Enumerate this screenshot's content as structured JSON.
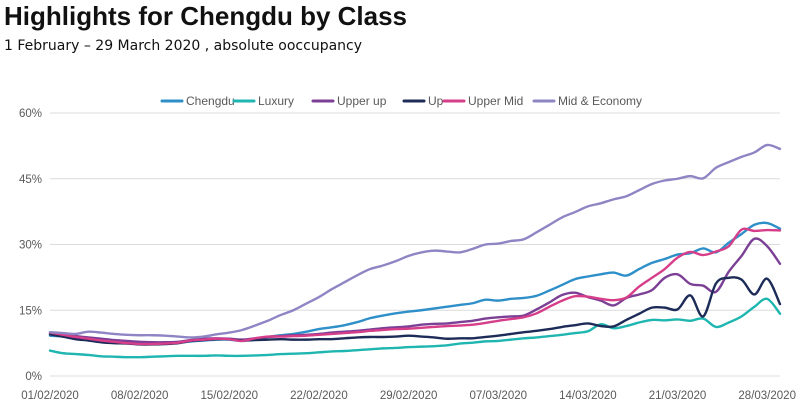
{
  "header": {
    "title": "Highlights for Chengdu by Class",
    "subtitle": "1 February – 29 March 2020 , absolute ooccupancy"
  },
  "chart_data": {
    "type": "line",
    "title": "Highlights for Chengdu by Class",
    "subtitle": "1 February – 29 March 2020 , absolute ooccupancy",
    "xlabel": "",
    "ylabel": "",
    "ylim": [
      0,
      60
    ],
    "yticks": [
      0,
      15,
      30,
      45,
      60
    ],
    "ytick_labels": [
      "0%",
      "15%",
      "30%",
      "45%",
      "60%"
    ],
    "grid": true,
    "legend_position": "top-center",
    "xtick_labels": [
      "01/02/2020",
      "08/02/2020",
      "15/02/2020",
      "22/02/2020",
      "29/02/2020",
      "07/03/2020",
      "14/03/2020",
      "21/03/2020",
      "28/03/2020"
    ],
    "xtick_day_index": [
      0,
      7,
      14,
      21,
      28,
      35,
      42,
      49,
      56
    ],
    "x_day_index": [
      0,
      1,
      2,
      3,
      4,
      5,
      6,
      7,
      8,
      9,
      10,
      11,
      12,
      13,
      14,
      15,
      16,
      17,
      18,
      19,
      20,
      21,
      22,
      23,
      24,
      25,
      26,
      27,
      28,
      29,
      30,
      31,
      32,
      33,
      34,
      35,
      36,
      37,
      38,
      39,
      40,
      41,
      42,
      43,
      44,
      45,
      46,
      47,
      48,
      49,
      50,
      51,
      52,
      53,
      54,
      55,
      56,
      57
    ],
    "series": [
      {
        "name": "Chengdu",
        "color": "#2E8FC9",
        "values": [
          9.2,
          9.0,
          8.8,
          8.6,
          8.3,
          8.0,
          7.8,
          7.6,
          7.5,
          7.4,
          7.6,
          7.9,
          8.1,
          8.3,
          8.3,
          8.0,
          8.4,
          8.9,
          9.3,
          9.6,
          10.1,
          10.7,
          11.1,
          11.6,
          12.3,
          13.2,
          13.8,
          14.3,
          14.7,
          15.0,
          15.4,
          15.8,
          16.2,
          16.6,
          17.4,
          17.2,
          17.6,
          17.8,
          18.3,
          19.5,
          20.8,
          22.1,
          22.7,
          23.2,
          23.6,
          22.9,
          24.4,
          25.8,
          26.7,
          27.7,
          28.0,
          29.1,
          28.2,
          30.4,
          32.4,
          34.5,
          34.9,
          33.6
        ]
      },
      {
        "name": "Luxury",
        "color": "#1FB5B0",
        "values": [
          5.8,
          5.2,
          5.0,
          4.8,
          4.5,
          4.4,
          4.3,
          4.3,
          4.4,
          4.5,
          4.6,
          4.6,
          4.6,
          4.7,
          4.6,
          4.6,
          4.7,
          4.8,
          5.0,
          5.1,
          5.2,
          5.4,
          5.6,
          5.7,
          5.9,
          6.1,
          6.3,
          6.4,
          6.6,
          6.7,
          6.8,
          7.0,
          7.4,
          7.6,
          7.9,
          8.0,
          8.3,
          8.6,
          8.8,
          9.1,
          9.4,
          9.8,
          10.2,
          11.8,
          10.9,
          11.4,
          12.2,
          12.8,
          12.7,
          12.9,
          12.6,
          13.1,
          11.2,
          12.2,
          13.6,
          15.8,
          17.6,
          14.2
        ]
      },
      {
        "name": "Upper up",
        "color": "#7B3F95",
        "values": [
          9.6,
          9.4,
          9.1,
          8.8,
          8.5,
          8.2,
          8.0,
          7.8,
          7.7,
          7.7,
          7.8,
          8.2,
          8.5,
          8.6,
          8.5,
          8.3,
          8.6,
          8.9,
          9.1,
          9.3,
          9.4,
          9.6,
          9.9,
          10.1,
          10.3,
          10.6,
          10.9,
          11.1,
          11.3,
          11.7,
          11.9,
          12.0,
          12.3,
          12.6,
          13.1,
          13.4,
          13.6,
          13.8,
          15.2,
          16.8,
          18.5,
          19.0,
          18.0,
          17.2,
          16.1,
          17.8,
          18.6,
          19.6,
          22.4,
          23.2,
          21.0,
          20.6,
          19.2,
          23.8,
          27.4,
          31.3,
          29.6,
          25.6
        ]
      },
      {
        "name": "Up",
        "color": "#1C2B57",
        "values": [
          9.5,
          9.0,
          8.4,
          8.1,
          7.7,
          7.5,
          7.4,
          7.2,
          7.2,
          7.3,
          7.5,
          8.0,
          8.2,
          8.4,
          8.4,
          8.1,
          8.2,
          8.3,
          8.4,
          8.3,
          8.3,
          8.4,
          8.4,
          8.6,
          8.8,
          8.9,
          8.9,
          9.0,
          9.2,
          9.0,
          8.8,
          8.5,
          8.6,
          8.6,
          8.9,
          9.2,
          9.6,
          10.0,
          10.3,
          10.7,
          11.2,
          11.6,
          12.0,
          11.4,
          11.3,
          12.8,
          14.2,
          15.6,
          15.6,
          15.2,
          18.4,
          13.6,
          21.1,
          22.4,
          22.0,
          18.6,
          22.2,
          16.4
        ]
      },
      {
        "name": "Upper Mid",
        "color": "#D63E8A",
        "values": [
          9.9,
          9.4,
          8.9,
          8.5,
          8.1,
          7.8,
          7.5,
          7.3,
          7.3,
          7.4,
          7.6,
          8.1,
          8.3,
          8.5,
          8.4,
          8.0,
          8.6,
          9.0,
          9.0,
          9.1,
          9.2,
          9.4,
          9.6,
          9.8,
          10.0,
          10.3,
          10.5,
          10.7,
          10.8,
          11.0,
          11.2,
          11.4,
          11.5,
          11.7,
          12.1,
          12.6,
          13.0,
          13.4,
          14.3,
          15.8,
          17.2,
          18.2,
          18.1,
          17.6,
          17.3,
          17.9,
          20.4,
          22.4,
          24.4,
          27.0,
          28.3,
          27.6,
          28.4,
          29.6,
          33.4,
          33.1,
          33.3,
          33.2
        ]
      },
      {
        "name": "Mid & Economy",
        "color": "#8E86C4",
        "values": [
          10.0,
          9.8,
          9.6,
          10.1,
          9.9,
          9.6,
          9.4,
          9.3,
          9.3,
          9.2,
          9.0,
          8.8,
          9.0,
          9.5,
          9.9,
          10.5,
          11.5,
          12.6,
          13.9,
          15.0,
          16.5,
          18.0,
          19.8,
          21.4,
          23.0,
          24.4,
          25.2,
          26.2,
          27.4,
          28.2,
          28.6,
          28.4,
          28.2,
          29.0,
          30.0,
          30.2,
          30.8,
          31.2,
          32.8,
          34.5,
          36.2,
          37.4,
          38.7,
          39.4,
          40.3,
          41.0,
          42.4,
          43.8,
          44.6,
          45.0,
          45.6,
          45.1,
          47.5,
          48.8,
          50.0,
          51.0,
          52.7,
          51.8
        ]
      }
    ]
  }
}
